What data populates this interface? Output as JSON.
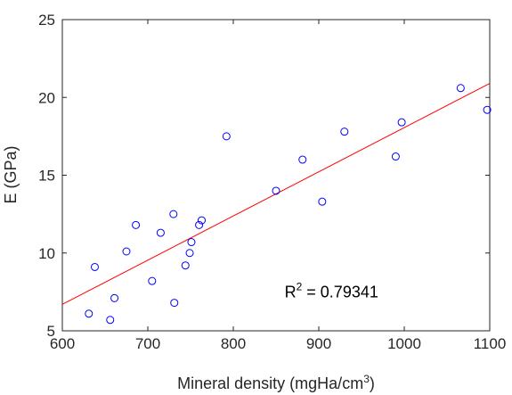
{
  "chart_data": {
    "type": "scatter",
    "xlabel": "Mineral density (mgHa/cm",
    "xlabel_superscript": "3",
    "xlabel_suffix": ")",
    "ylabel": "E (GPa)",
    "xlim": [
      600,
      1100
    ],
    "ylim": [
      5,
      25
    ],
    "xticks": [
      600,
      700,
      800,
      900,
      1000,
      1100
    ],
    "yticks": [
      5,
      10,
      15,
      20,
      25
    ],
    "xtick_labels": [
      "600",
      "700",
      "800",
      "900",
      "1000",
      "1100"
    ],
    "ytick_labels": [
      "5",
      "10",
      "15",
      "20",
      "25"
    ],
    "grid": false,
    "box": true,
    "series": [
      {
        "marker": "open-circle",
        "color": "#0000ff",
        "points": [
          [
            631,
            6.1
          ],
          [
            638,
            9.1
          ],
          [
            656,
            5.7
          ],
          [
            661,
            7.1
          ],
          [
            675,
            10.1
          ],
          [
            686,
            11.8
          ],
          [
            705,
            8.2
          ],
          [
            715,
            11.3
          ],
          [
            730,
            12.5
          ],
          [
            731,
            6.8
          ],
          [
            744,
            9.2
          ],
          [
            749,
            10.0
          ],
          [
            751,
            10.7
          ],
          [
            760,
            11.8
          ],
          [
            763,
            12.1
          ],
          [
            792,
            17.5
          ],
          [
            850,
            14.0
          ],
          [
            881,
            16.0
          ],
          [
            904,
            13.3
          ],
          [
            930,
            17.8
          ],
          [
            990,
            16.2
          ],
          [
            997,
            18.4
          ],
          [
            1066,
            20.6
          ],
          [
            1097,
            19.2
          ]
        ]
      }
    ],
    "fit_line": {
      "color": "#ff0000",
      "from": [
        600,
        6.7
      ],
      "to": [
        1100,
        20.9
      ]
    },
    "annotation": {
      "text_prefix": "R",
      "text_superscript": "2",
      "text_suffix": " = 0.79341",
      "x": 860,
      "y": 7.5
    }
  }
}
